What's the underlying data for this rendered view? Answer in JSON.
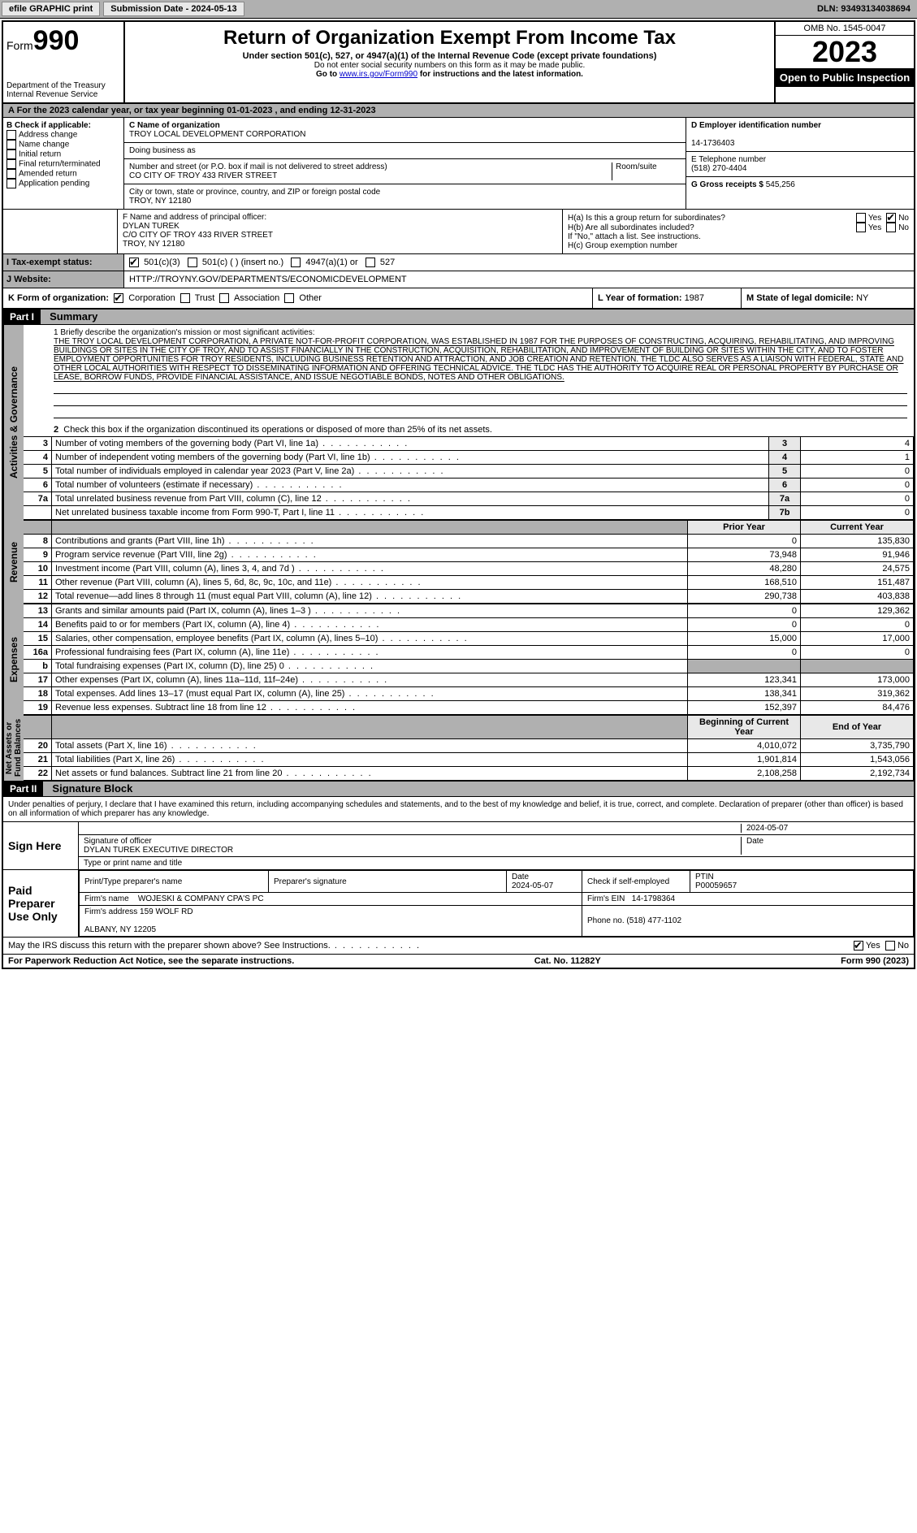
{
  "toolbar": {
    "efile": "efile GRAPHIC print",
    "submission": "Submission Date - 2024-05-13",
    "dln": "DLN: 93493134038694"
  },
  "header": {
    "form_word": "Form",
    "form_num": "990",
    "dept": "Department of the Treasury",
    "irs": "Internal Revenue Service",
    "title": "Return of Organization Exempt From Income Tax",
    "sub": "Under section 501(c), 527, or 4947(a)(1) of the Internal Revenue Code (except private foundations)",
    "warn": "Do not enter social security numbers on this form as it may be made public.",
    "goto_pre": "Go to ",
    "goto_link": "www.irs.gov/Form990",
    "goto_post": " for instructions and the latest information.",
    "omb": "OMB No. 1545-0047",
    "year": "2023",
    "inspect": "Open to Public Inspection"
  },
  "rowA": "A For the 2023 calendar year, or tax year beginning 01-01-2023   , and ending 12-31-2023",
  "sectionB": {
    "b_label": "B Check if applicable:",
    "b_items": [
      "Address change",
      "Name change",
      "Initial return",
      "Final return/terminated",
      "Amended return",
      "Application pending"
    ],
    "c_name_lbl": "C Name of organization",
    "c_name": "TROY LOCAL DEVELOPMENT CORPORATION",
    "dba_lbl": "Doing business as",
    "street_lbl": "Number and street (or P.O. box if mail is not delivered to street address)",
    "street": "CO CITY OF TROY 433 RIVER STREET",
    "room_lbl": "Room/suite",
    "city_lbl": "City or town, state or province, country, and ZIP or foreign postal code",
    "city": "TROY, NY  12180",
    "d_lbl": "D Employer identification number",
    "d_val": "14-1736403",
    "e_lbl": "E Telephone number",
    "e_val": "(518) 270-4404",
    "g_lbl": "G Gross receipts $",
    "g_val": "545,256",
    "f_lbl": "F  Name and address of principal officer:",
    "f_name": "DYLAN TUREK",
    "f_addr1": "C/O CITY OF TROY 433 RIVER STREET",
    "f_addr2": "TROY, NY  12180",
    "ha": "H(a)  Is this a group return for subordinates?",
    "hb": "H(b)  Are all subordinates included?",
    "hb_note": "If \"No,\" attach a list. See instructions.",
    "hc": "H(c)  Group exemption number",
    "yes": "Yes",
    "no": "No"
  },
  "taxrows": {
    "i_lbl": "I   Tax-exempt status:",
    "i_501c3": "501(c)(3)",
    "i_501c": "501(c) (  ) (insert no.)",
    "i_4947": "4947(a)(1) or",
    "i_527": "527",
    "j_lbl": "J   Website:",
    "j_val": "HTTP://TROYNY.GOV/DEPARTMENTS/ECONOMICDEVELOPMENT",
    "k_lbl": "K Form of organization:",
    "k_corp": "Corporation",
    "k_trust": "Trust",
    "k_assoc": "Association",
    "k_other": "Other",
    "l_lbl": "L Year of formation: ",
    "l_val": "1987",
    "m_lbl": "M State of legal domicile: ",
    "m_val": "NY"
  },
  "part1": {
    "header": "Part I",
    "title": "Summary",
    "q1_lbl": "1   Briefly describe the organization's mission or most significant activities:",
    "mission": "THE TROY LOCAL DEVELOPMENT CORPORATION, A PRIVATE NOT-FOR-PROFIT CORPORATION, WAS ESTABLISHED IN 1987 FOR THE PURPOSES OF CONSTRUCTING, ACQUIRING, REHABILITATING, AND IMPROVING BUILDINGS OR SITES IN THE CITY OF TROY, AND TO ASSIST FINANCIALLY IN THE CONSTRUCTION, ACQUISITION, REHABILITATION, AND IMPROVEMENT OF BUILDING OR SITES WITHIN THE CITY, AND TO FOSTER EMPLOYMENT OPPORTUNITIES FOR TROY RESIDENTS, INCLUDING BUSINESS RETENTION AND ATTRACTION, AND JOB CREATION AND RETENTION. THE TLDC ALSO SERVES AS A LIAISON WITH FEDERAL, STATE AND OTHER LOCAL AUTHORITIES WITH RESPECT TO DISSEMINATING INFORMATION AND OFFERING TECHNICAL ADVICE. THE TLDC HAS THE AUTHORITY TO ACQUIRE REAL OR PERSONAL PROPERTY BY PURCHASE OR LEASE, BORROW FUNDS, PROVIDE FINANCIAL ASSISTANCE, AND ISSUE NEGOTIABLE BONDS, NOTES AND OTHER OBLIGATIONS.",
    "q2": "Check this box      if the organization discontinued its operations or disposed of more than 25% of its net assets.",
    "vtab_gov": "Activities & Governance",
    "vtab_rev": "Revenue",
    "vtab_exp": "Expenses",
    "vtab_net": "Net Assets or Fund Balances",
    "col_prior": "Prior Year",
    "col_curr": "Current Year",
    "col_beg": "Beginning of Current Year",
    "col_end": "End of Year",
    "rows_gov": [
      {
        "n": "3",
        "d": "Number of voting members of the governing body (Part VI, line 1a)",
        "b": "3",
        "v": "4"
      },
      {
        "n": "4",
        "d": "Number of independent voting members of the governing body (Part VI, line 1b)",
        "b": "4",
        "v": "1"
      },
      {
        "n": "5",
        "d": "Total number of individuals employed in calendar year 2023 (Part V, line 2a)",
        "b": "5",
        "v": "0"
      },
      {
        "n": "6",
        "d": "Total number of volunteers (estimate if necessary)",
        "b": "6",
        "v": "0"
      },
      {
        "n": "7a",
        "d": "Total unrelated business revenue from Part VIII, column (C), line 12",
        "b": "7a",
        "v": "0"
      },
      {
        "n": "",
        "d": "Net unrelated business taxable income from Form 990-T, Part I, line 11",
        "b": "7b",
        "v": "0"
      }
    ],
    "rows_rev": [
      {
        "n": "8",
        "d": "Contributions and grants (Part VIII, line 1h)",
        "p": "0",
        "c": "135,830"
      },
      {
        "n": "9",
        "d": "Program service revenue (Part VIII, line 2g)",
        "p": "73,948",
        "c": "91,946"
      },
      {
        "n": "10",
        "d": "Investment income (Part VIII, column (A), lines 3, 4, and 7d )",
        "p": "48,280",
        "c": "24,575"
      },
      {
        "n": "11",
        "d": "Other revenue (Part VIII, column (A), lines 5, 6d, 8c, 9c, 10c, and 11e)",
        "p": "168,510",
        "c": "151,487"
      },
      {
        "n": "12",
        "d": "Total revenue—add lines 8 through 11 (must equal Part VIII, column (A), line 12)",
        "p": "290,738",
        "c": "403,838"
      }
    ],
    "rows_exp": [
      {
        "n": "13",
        "d": "Grants and similar amounts paid (Part IX, column (A), lines 1–3 )",
        "p": "0",
        "c": "129,362"
      },
      {
        "n": "14",
        "d": "Benefits paid to or for members (Part IX, column (A), line 4)",
        "p": "0",
        "c": "0"
      },
      {
        "n": "15",
        "d": "Salaries, other compensation, employee benefits (Part IX, column (A), lines 5–10)",
        "p": "15,000",
        "c": "17,000"
      },
      {
        "n": "16a",
        "d": "Professional fundraising fees (Part IX, column (A), line 11e)",
        "p": "0",
        "c": "0"
      },
      {
        "n": "b",
        "d": "Total fundraising expenses (Part IX, column (D), line 25) 0",
        "p": "shade",
        "c": "shade"
      },
      {
        "n": "17",
        "d": "Other expenses (Part IX, column (A), lines 11a–11d, 11f–24e)",
        "p": "123,341",
        "c": "173,000"
      },
      {
        "n": "18",
        "d": "Total expenses. Add lines 13–17 (must equal Part IX, column (A), line 25)",
        "p": "138,341",
        "c": "319,362"
      },
      {
        "n": "19",
        "d": "Revenue less expenses. Subtract line 18 from line 12",
        "p": "152,397",
        "c": "84,476"
      }
    ],
    "rows_net": [
      {
        "n": "20",
        "d": "Total assets (Part X, line 16)",
        "p": "4,010,072",
        "c": "3,735,790"
      },
      {
        "n": "21",
        "d": "Total liabilities (Part X, line 26)",
        "p": "1,901,814",
        "c": "1,543,056"
      },
      {
        "n": "22",
        "d": "Net assets or fund balances. Subtract line 21 from line 20",
        "p": "2,108,258",
        "c": "2,192,734"
      }
    ]
  },
  "part2": {
    "header": "Part II",
    "title": "Signature Block",
    "decl": "Under penalties of perjury, I declare that I have examined this return, including accompanying schedules and statements, and to the best of my knowledge and belief, it is true, correct, and complete. Declaration of preparer (other than officer) is based on all information of which preparer has any knowledge.",
    "sign_here": "Sign Here",
    "sig_officer_lbl": "Signature of officer",
    "sig_officer": "DYLAN TUREK  EXECUTIVE DIRECTOR",
    "sig_name_lbl": "Type or print name and title",
    "date_lbl": "Date",
    "date_val": "2024-05-07",
    "paid": "Paid Preparer Use Only",
    "prep_name_lbl": "Print/Type preparer's name",
    "prep_sig_lbl": "Preparer's signature",
    "prep_date": "2024-05-07",
    "self_emp": "Check      if self-employed",
    "ptin_lbl": "PTIN",
    "ptin": "P00059657",
    "firm_name_lbl": "Firm's name",
    "firm_name": "WOJESKI & COMPANY CPA'S PC",
    "firm_ein_lbl": "Firm's EIN",
    "firm_ein": "14-1798364",
    "firm_addr_lbl": "Firm's address",
    "firm_addr1": "159 WOLF RD",
    "firm_addr2": "ALBANY, NY  12205",
    "firm_phone_lbl": "Phone no.",
    "firm_phone": "(518) 477-1102",
    "discuss": "May the IRS discuss this return with the preparer shown above? See Instructions."
  },
  "footer": {
    "pra": "For Paperwork Reduction Act Notice, see the separate instructions.",
    "cat": "Cat. No. 11282Y",
    "form": "Form 990 (2023)"
  }
}
